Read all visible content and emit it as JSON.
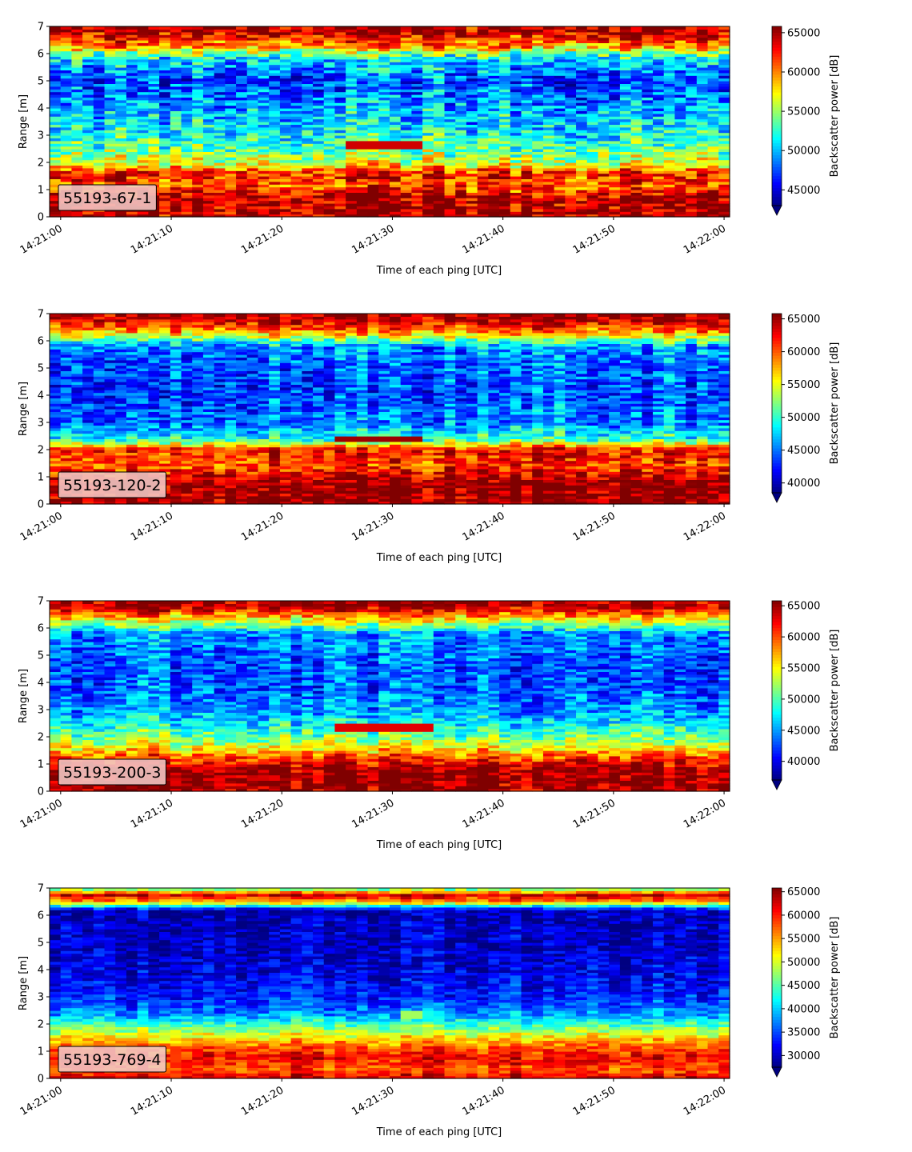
{
  "chart_data": [
    {
      "type": "heatmap",
      "label_box": "55193-67-1",
      "xlabel": "Time of each ping [UTC]",
      "ylabel": "Range [m]",
      "colorbar_label": "Backscatter power [dB]",
      "colormap": "jet",
      "x_ticks": [
        "14:21:00",
        "14:21:10",
        "14:21:20",
        "14:21:30",
        "14:21:40",
        "14:21:50",
        "14:22:00"
      ],
      "xlim": [
        "14:20:59",
        "14:22:00.5"
      ],
      "y_ticks": [
        0,
        1,
        2,
        3,
        4,
        5,
        6,
        7
      ],
      "ylim": [
        0,
        7
      ],
      "colorbar_ticks": [
        45000,
        50000,
        55000,
        60000,
        65000
      ],
      "clim": [
        43000,
        65800
      ],
      "colorbar_extend": "min",
      "approx_profile": [
        {
          "range_m": 0.1,
          "value": 65000
        },
        {
          "range_m": 0.7,
          "value": 65000
        },
        {
          "range_m": 1.2,
          "value": 61000
        },
        {
          "range_m": 1.6,
          "value": 63000
        },
        {
          "range_m": 2.0,
          "value": 56500
        },
        {
          "range_m": 2.5,
          "value": 54000
        },
        {
          "range_m": 3.0,
          "value": 52000
        },
        {
          "range_m": 4.0,
          "value": 50000
        },
        {
          "range_m": 5.0,
          "value": 47500
        },
        {
          "range_m": 5.8,
          "value": 51000
        },
        {
          "range_m": 6.3,
          "value": 60000
        },
        {
          "range_m": 6.8,
          "value": 65000
        }
      ],
      "feature_band": {
        "t_start_s": 25,
        "t_end_s": 32.5,
        "range_m": 2.65,
        "value": 64000
      }
    },
    {
      "type": "heatmap",
      "label_box": "55193-120-2",
      "xlabel": "Time of each ping [UTC]",
      "ylabel": "Range [m]",
      "colorbar_label": "Backscatter power [dB]",
      "colormap": "jet",
      "x_ticks": [
        "14:21:00",
        "14:21:10",
        "14:21:20",
        "14:21:30",
        "14:21:40",
        "14:21:50",
        "14:22:00"
      ],
      "xlim": [
        "14:20:59",
        "14:22:00.5"
      ],
      "y_ticks": [
        0,
        1,
        2,
        3,
        4,
        5,
        6,
        7
      ],
      "ylim": [
        0,
        7
      ],
      "colorbar_ticks": [
        40000,
        45000,
        50000,
        55000,
        60000,
        65000
      ],
      "clim": [
        38500,
        65800
      ],
      "colorbar_extend": "min",
      "approx_profile": [
        {
          "range_m": 0.1,
          "value": 65500
        },
        {
          "range_m": 0.8,
          "value": 65500
        },
        {
          "range_m": 1.4,
          "value": 61000
        },
        {
          "range_m": 2.0,
          "value": 62500
        },
        {
          "range_m": 2.4,
          "value": 50000
        },
        {
          "range_m": 3.0,
          "value": 45500
        },
        {
          "range_m": 4.0,
          "value": 44000
        },
        {
          "range_m": 5.0,
          "value": 44500
        },
        {
          "range_m": 5.8,
          "value": 46000
        },
        {
          "range_m": 6.3,
          "value": 58000
        },
        {
          "range_m": 6.8,
          "value": 65000
        }
      ],
      "feature_band": {
        "t_start_s": 24,
        "t_end_s": 32.5,
        "range_m": 2.4,
        "value": 65000
      }
    },
    {
      "type": "heatmap",
      "label_box": "55193-200-3",
      "xlabel": "Time of each ping [UTC]",
      "ylabel": "Range [m]",
      "colorbar_label": "Backscatter power [dB]",
      "colormap": "jet",
      "x_ticks": [
        "14:21:00",
        "14:21:10",
        "14:21:20",
        "14:21:30",
        "14:21:40",
        "14:21:50",
        "14:22:00"
      ],
      "xlim": [
        "14:20:59",
        "14:22:00.5"
      ],
      "y_ticks": [
        0,
        1,
        2,
        3,
        4,
        5,
        6,
        7
      ],
      "ylim": [
        0,
        7
      ],
      "colorbar_ticks": [
        40000,
        45000,
        50000,
        55000,
        60000,
        65000
      ],
      "clim": [
        37000,
        65800
      ],
      "colorbar_extend": "min",
      "approx_profile": [
        {
          "range_m": 0.1,
          "value": 65500
        },
        {
          "range_m": 0.8,
          "value": 65500
        },
        {
          "range_m": 1.3,
          "value": 60000
        },
        {
          "range_m": 1.8,
          "value": 53000
        },
        {
          "range_m": 2.4,
          "value": 48500
        },
        {
          "range_m": 3.0,
          "value": 45000
        },
        {
          "range_m": 4.0,
          "value": 43000
        },
        {
          "range_m": 5.0,
          "value": 43500
        },
        {
          "range_m": 5.8,
          "value": 45000
        },
        {
          "range_m": 6.3,
          "value": 55000
        },
        {
          "range_m": 6.8,
          "value": 65000
        }
      ],
      "feature_band": {
        "t_start_s": 24,
        "t_end_s": 33,
        "range_m": 2.35,
        "value": 63000
      }
    },
    {
      "type": "heatmap",
      "label_box": "55193-769-4",
      "xlabel": "Time of each ping [UTC]",
      "ylabel": "Range [m]",
      "colorbar_label": "Backscatter power [dB]",
      "colormap": "jet",
      "x_ticks": [
        "14:21:00",
        "14:21:10",
        "14:21:20",
        "14:21:30",
        "14:21:40",
        "14:21:50",
        "14:22:00"
      ],
      "xlim": [
        "14:20:59",
        "14:22:00.5"
      ],
      "y_ticks": [
        0,
        1,
        2,
        3,
        4,
        5,
        6,
        7
      ],
      "ylim": [
        0,
        7
      ],
      "colorbar_ticks": [
        30000,
        35000,
        40000,
        45000,
        50000,
        55000,
        60000,
        65000
      ],
      "clim": [
        27500,
        65800
      ],
      "colorbar_extend": "min",
      "approx_profile": [
        {
          "range_m": 0.1,
          "value": 62000
        },
        {
          "range_m": 0.3,
          "value": 58000
        },
        {
          "range_m": 0.8,
          "value": 62000
        },
        {
          "range_m": 1.3,
          "value": 56000
        },
        {
          "range_m": 1.8,
          "value": 48000
        },
        {
          "range_m": 2.4,
          "value": 38000
        },
        {
          "range_m": 3.0,
          "value": 34000
        },
        {
          "range_m": 4.0,
          "value": 31500
        },
        {
          "range_m": 5.0,
          "value": 30500
        },
        {
          "range_m": 6.2,
          "value": 30000
        },
        {
          "range_m": 6.5,
          "value": 55000
        },
        {
          "range_m": 6.75,
          "value": 63000
        },
        {
          "range_m": 6.95,
          "value": 48000
        }
      ],
      "feature_band": {
        "t_start_s": 30,
        "t_end_s": 32.5,
        "range_m": 2.35,
        "value": 48000
      }
    }
  ]
}
